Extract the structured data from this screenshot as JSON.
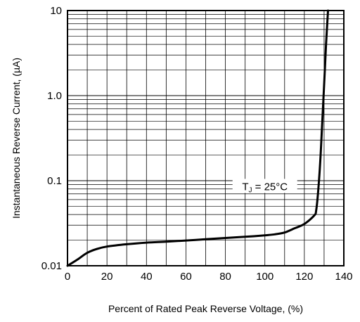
{
  "chart_data": {
    "type": "line",
    "xlabel": "Percent of Rated Peak Reverse Voltage, (%)",
    "ylabel": "Instantaneous Reverse Current, (µA)",
    "x_scale": "linear",
    "y_scale": "log",
    "xlim": [
      0,
      140
    ],
    "ylim": [
      0.01,
      10
    ],
    "x_ticks": [
      0,
      20,
      40,
      60,
      80,
      100,
      120,
      140
    ],
    "x_tick_labels": [
      "0",
      "20",
      "40",
      "60",
      "80",
      "100",
      "120",
      "140"
    ],
    "y_ticks": [
      0.01,
      0.1,
      1,
      10
    ],
    "y_tick_labels": [
      "0.01",
      "0.1",
      "1.0",
      "10"
    ],
    "grid": true,
    "annotation": {
      "main": "T",
      "sub": "J",
      "rest": " = 25°C",
      "x": 100,
      "y": 0.082
    },
    "series": [
      {
        "x": [
          0,
          5,
          10,
          15,
          20,
          30,
          40,
          50,
          60,
          70,
          80,
          90,
          100,
          105,
          110,
          115,
          120,
          125,
          126,
          127,
          128,
          129,
          130,
          131,
          132
        ],
        "y": [
          0.01,
          0.0118,
          0.0142,
          0.0158,
          0.0168,
          0.0179,
          0.0187,
          0.0192,
          0.0198,
          0.0205,
          0.0212,
          0.0219,
          0.0228,
          0.0234,
          0.0246,
          0.0275,
          0.031,
          0.039,
          0.045,
          0.075,
          0.16,
          0.45,
          1.3,
          4.0,
          10
        ]
      }
    ]
  }
}
